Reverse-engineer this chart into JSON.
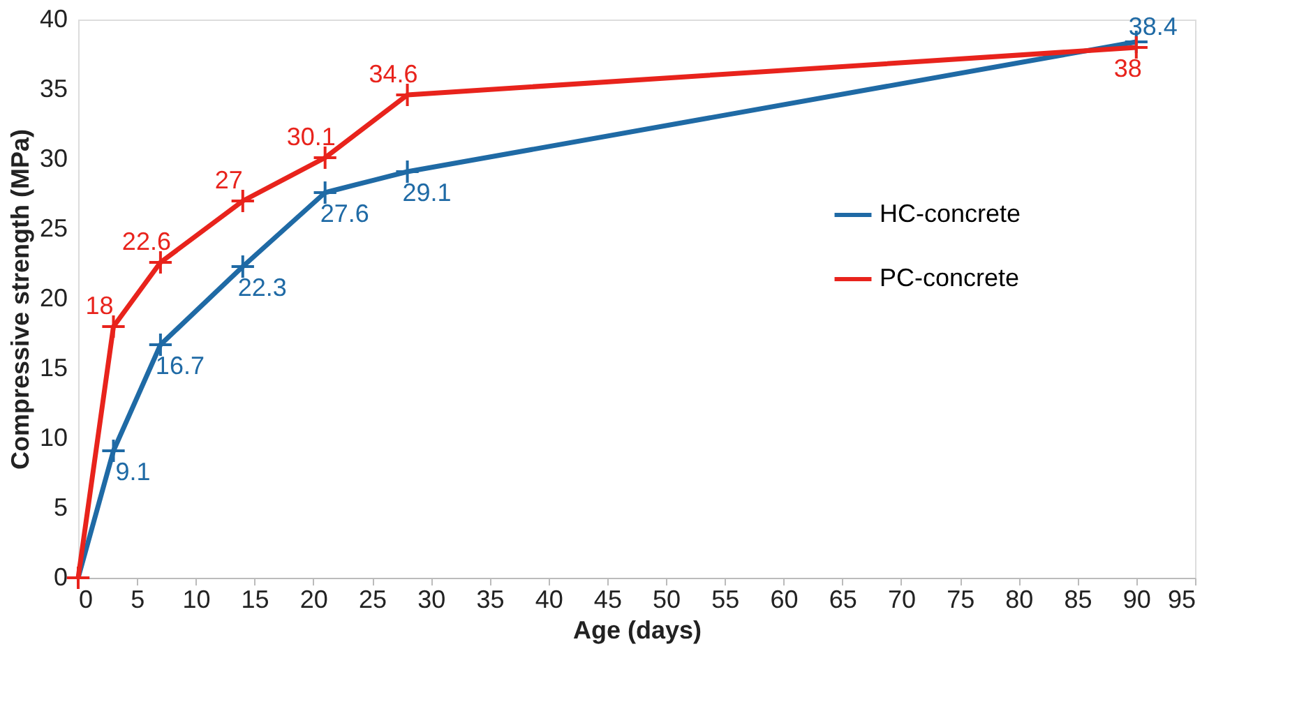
{
  "chart_data": {
    "type": "line",
    "xlabel": "Age (days)",
    "ylabel": "Compressive strength (MPa)",
    "x": [
      0,
      3,
      7,
      14,
      21,
      28,
      90
    ],
    "series": [
      {
        "name": "HC-concrete",
        "color": "#1f6aa5",
        "values": [
          0,
          9.1,
          16.7,
          22.3,
          27.6,
          29.1,
          38.4
        ],
        "value_labels": [
          null,
          "9.1",
          "16.7",
          "22.3",
          "27.6",
          "29.1",
          "38.4"
        ]
      },
      {
        "name": "PC-concrete",
        "color": "#e8231c",
        "values": [
          0,
          18,
          22.6,
          27,
          30.1,
          34.6,
          38
        ],
        "value_labels": [
          null,
          "18",
          "22.6",
          "27",
          "30.1",
          "34.6",
          "38"
        ]
      }
    ],
    "xlim": [
      0,
      95
    ],
    "xticks": [
      0,
      5,
      10,
      15,
      20,
      25,
      30,
      35,
      40,
      45,
      50,
      55,
      60,
      65,
      70,
      75,
      80,
      85,
      90,
      95
    ],
    "ylim": [
      0,
      40
    ],
    "yticks": [
      0,
      5,
      10,
      15,
      20,
      25,
      30,
      35,
      40
    ],
    "grid": false,
    "legend": "right",
    "marker": "cross",
    "line_style": "solid"
  }
}
